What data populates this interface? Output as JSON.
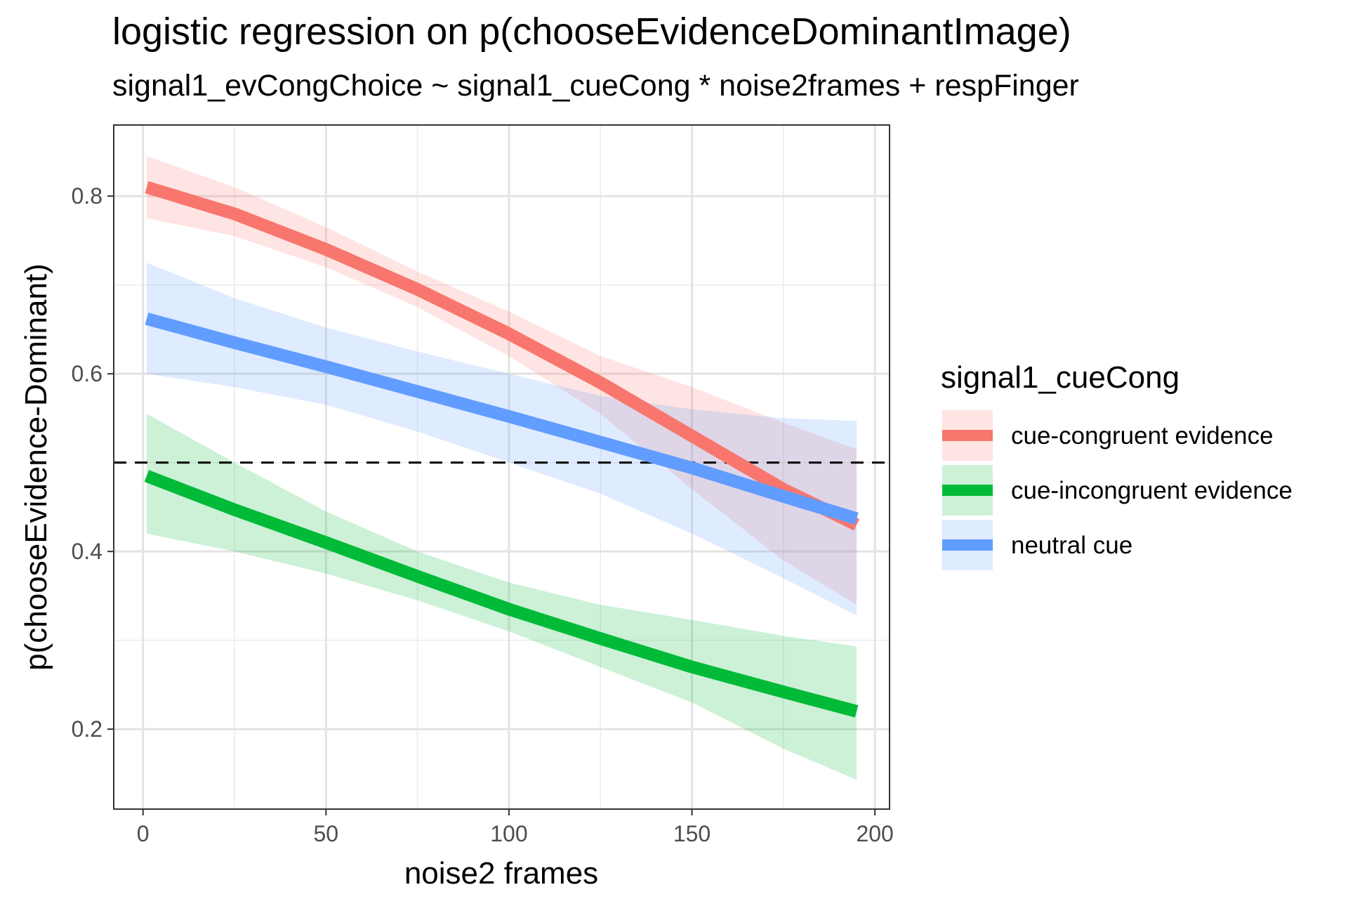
{
  "chart_data": {
    "type": "line",
    "title": "logistic regression on p(chooseEvidenceDominantImage)",
    "subtitle": "signal1_evCongChoice ~ signal1_cueCong * noise2frames + respFinger",
    "xlabel": "noise2 frames",
    "ylabel": "p(chooseEvidence-Dominant)",
    "xlim": [
      -8,
      204
    ],
    "ylim": [
      0.11,
      0.88
    ],
    "xticks": [
      0,
      50,
      100,
      150,
      200
    ],
    "yticks": [
      0.2,
      0.4,
      0.6,
      0.8
    ],
    "xtick_labels": [
      "0",
      "50",
      "100",
      "150",
      "200"
    ],
    "ytick_labels": [
      "0.2",
      "0.4",
      "0.6",
      "0.8"
    ],
    "grid": true,
    "reference_line": {
      "y": 0.5,
      "style": "dashed",
      "color": "#000000"
    },
    "legend": {
      "title": "signal1_cueCong",
      "position": "right"
    },
    "x": [
      1,
      25,
      50,
      75,
      100,
      125,
      150,
      175,
      195
    ],
    "series": [
      {
        "name": "cue-congruent evidence",
        "color": "#F8766D",
        "values": [
          0.81,
          0.78,
          0.74,
          0.695,
          0.645,
          0.59,
          0.53,
          0.47,
          0.43
        ],
        "lower": [
          0.775,
          0.755,
          0.72,
          0.675,
          0.62,
          0.555,
          0.47,
          0.39,
          0.34
        ],
        "upper": [
          0.845,
          0.81,
          0.765,
          0.715,
          0.67,
          0.62,
          0.585,
          0.545,
          0.515
        ]
      },
      {
        "name": "cue-incongruent evidence",
        "color": "#00BA38",
        "values": [
          0.485,
          0.447,
          0.41,
          0.372,
          0.335,
          0.302,
          0.27,
          0.242,
          0.22
        ],
        "lower": [
          0.42,
          0.4,
          0.375,
          0.345,
          0.31,
          0.27,
          0.23,
          0.178,
          0.143
        ],
        "upper": [
          0.555,
          0.5,
          0.445,
          0.4,
          0.365,
          0.34,
          0.323,
          0.305,
          0.293
        ]
      },
      {
        "name": "neutral cue",
        "color": "#619CFF",
        "values": [
          0.662,
          0.635,
          0.608,
          0.58,
          0.552,
          0.523,
          0.494,
          0.462,
          0.437
        ],
        "lower": [
          0.6,
          0.585,
          0.565,
          0.535,
          0.5,
          0.465,
          0.42,
          0.37,
          0.328
        ],
        "upper": [
          0.725,
          0.685,
          0.652,
          0.625,
          0.6,
          0.575,
          0.56,
          0.55,
          0.547
        ]
      }
    ]
  }
}
